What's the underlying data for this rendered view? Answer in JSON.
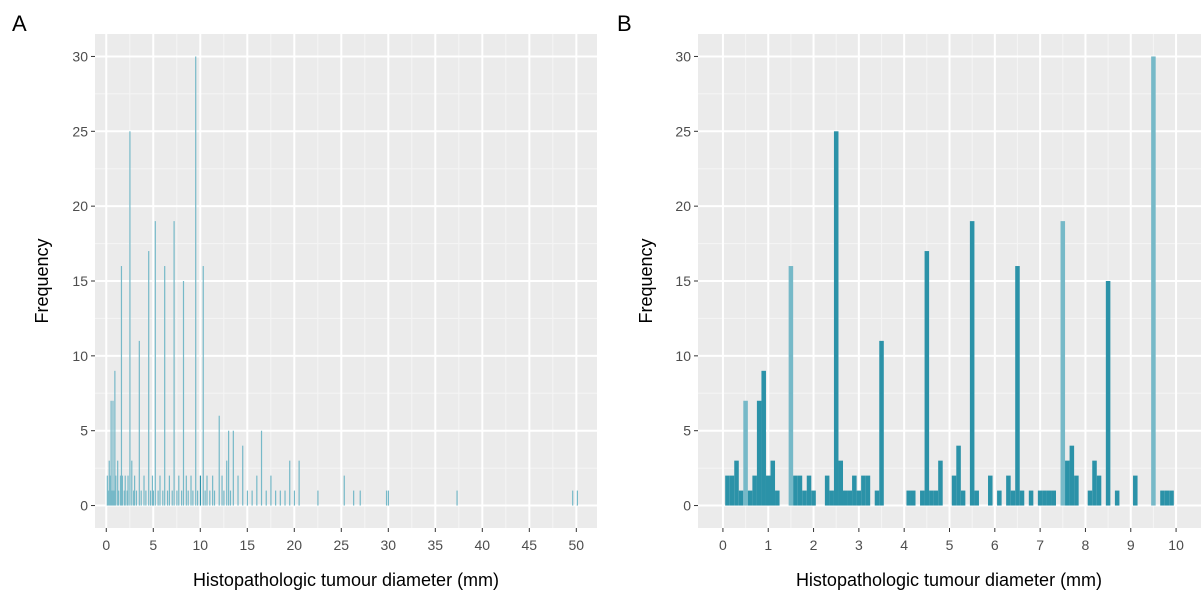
{
  "chart_data": [
    {
      "panel": "A",
      "type": "bar",
      "xlabel": "Histopathologic tumour diameter (mm)",
      "ylabel": "Frequency",
      "xlim": [
        -1.2,
        52.2
      ],
      "ylim": [
        -1.5,
        31.5
      ],
      "xticks": [
        0,
        5,
        10,
        15,
        20,
        25,
        30,
        35,
        40,
        45,
        50
      ],
      "yticks": [
        0,
        5,
        10,
        15,
        20,
        25,
        30
      ],
      "bar_width": 0.1,
      "grid": true,
      "colors": {
        "light": "#76b9c8",
        "dark": "#2b92a8"
      },
      "x": [
        0.1,
        0.2,
        0.3,
        0.4,
        0.5,
        0.6,
        0.7,
        0.8,
        0.9,
        1.0,
        1.2,
        1.3,
        1.5,
        1.6,
        1.7,
        1.9,
        2.0,
        2.2,
        2.3,
        2.5,
        2.7,
        2.9,
        3.0,
        3.2,
        3.5,
        3.7,
        4.0,
        4.2,
        4.5,
        4.7,
        4.9,
        5.0,
        5.2,
        5.5,
        5.7,
        6.0,
        6.2,
        6.5,
        6.7,
        7.0,
        7.2,
        7.5,
        7.7,
        8.0,
        8.2,
        8.5,
        8.7,
        9.0,
        9.2,
        9.5,
        9.7,
        10.0,
        10.3,
        10.5,
        10.7,
        11.0,
        11.3,
        11.5,
        12.0,
        12.3,
        12.5,
        12.8,
        13.0,
        13.2,
        13.5,
        14.0,
        14.5,
        15.0,
        15.5,
        16.0,
        16.5,
        17.0,
        17.5,
        18.0,
        18.5,
        19.0,
        19.5,
        20.0,
        20.5,
        22.5,
        25.3,
        26.3,
        27.0,
        29.8,
        30.0,
        37.3,
        49.6,
        50.1
      ],
      "values": [
        2,
        1,
        3,
        2,
        7,
        1,
        7,
        1,
        9,
        2,
        3,
        1,
        2,
        16,
        2,
        1,
        2,
        1,
        2,
        25,
        3,
        1,
        2,
        1,
        11,
        1,
        2,
        1,
        17,
        1,
        2,
        1,
        19,
        1,
        2,
        1,
        16,
        1,
        2,
        1,
        19,
        1,
        2,
        1,
        15,
        2,
        1,
        2,
        1,
        30,
        1,
        2,
        16,
        1,
        2,
        1,
        2,
        1,
        6,
        2,
        1,
        3,
        5,
        1,
        5,
        2,
        4,
        1,
        1,
        2,
        5,
        1,
        2,
        1,
        1,
        1,
        3,
        1,
        3,
        1,
        2,
        1,
        1,
        1,
        1,
        1,
        1,
        1
      ],
      "shade": [
        "light",
        "light",
        "light",
        "light",
        "light",
        "light",
        "light",
        "light",
        "light",
        "light",
        "light",
        "light",
        "light",
        "light",
        "light",
        "light",
        "light",
        "light",
        "light",
        "light",
        "light",
        "light",
        "light",
        "light",
        "light",
        "light",
        "light",
        "light",
        "light",
        "light",
        "light",
        "light",
        "light",
        "light",
        "light",
        "light",
        "light",
        "light",
        "light",
        "light",
        "light",
        "light",
        "light",
        "light",
        "light",
        "light",
        "light",
        "light",
        "light",
        "light",
        "light",
        "dark",
        "light",
        "light",
        "light",
        "light",
        "light",
        "light",
        "light",
        "light",
        "light",
        "light",
        "light",
        "light",
        "light",
        "light",
        "light",
        "light",
        "light",
        "light",
        "light",
        "light",
        "light",
        "light",
        "light",
        "light",
        "light",
        "light",
        "light",
        "light",
        "light",
        "light",
        "light",
        "light",
        "light",
        "light",
        "light",
        "light"
      ]
    },
    {
      "panel": "B",
      "type": "bar",
      "xlabel": "Histopathologic tumour diameter (mm)",
      "ylabel": "Frequency",
      "xlim": [
        -0.55,
        10.55
      ],
      "ylim": [
        -1.5,
        31.5
      ],
      "xticks": [
        0,
        1,
        2,
        3,
        4,
        5,
        6,
        7,
        8,
        9,
        10
      ],
      "yticks": [
        0,
        5,
        10,
        15,
        20,
        25,
        30
      ],
      "bar_width": 0.1,
      "grid": true,
      "colors": {
        "light": "#76b9c8",
        "dark": "#2b92a8"
      },
      "x": [
        0.1,
        0.2,
        0.3,
        0.4,
        0.5,
        0.6,
        0.7,
        0.8,
        0.9,
        1.0,
        1.1,
        1.2,
        1.5,
        1.6,
        1.7,
        1.8,
        1.9,
        2.0,
        2.3,
        2.4,
        2.5,
        2.6,
        2.7,
        2.8,
        2.9,
        3.0,
        3.1,
        3.2,
        3.4,
        3.5,
        4.1,
        4.2,
        4.4,
        4.5,
        4.6,
        4.7,
        4.8,
        5.1,
        5.2,
        5.3,
        5.5,
        5.6,
        5.9,
        6.1,
        6.3,
        6.4,
        6.5,
        6.6,
        6.8,
        7.0,
        7.1,
        7.2,
        7.3,
        7.5,
        7.6,
        7.7,
        7.8,
        8.1,
        8.2,
        8.3,
        8.5,
        8.7,
        9.1,
        9.5,
        9.7,
        9.8,
        9.9
      ],
      "values": [
        2,
        2,
        3,
        1,
        7,
        1,
        2,
        7,
        9,
        2,
        3,
        1,
        16,
        2,
        2,
        1,
        2,
        1,
        2,
        1,
        25,
        3,
        1,
        1,
        2,
        1,
        2,
        2,
        1,
        11,
        1,
        1,
        1,
        17,
        1,
        1,
        3,
        2,
        4,
        1,
        19,
        1,
        2,
        1,
        2,
        1,
        16,
        1,
        1,
        1,
        1,
        1,
        1,
        19,
        3,
        4,
        2,
        1,
        3,
        2,
        15,
        1,
        2,
        30,
        1,
        1,
        1
      ],
      "shade": [
        "dark",
        "dark",
        "dark",
        "dark",
        "light",
        "dark",
        "dark",
        "dark",
        "dark",
        "dark",
        "dark",
        "dark",
        "light",
        "dark",
        "dark",
        "dark",
        "dark",
        "dark",
        "dark",
        "dark",
        "dark",
        "dark",
        "dark",
        "dark",
        "dark",
        "dark",
        "dark",
        "dark",
        "dark",
        "dark",
        "dark",
        "dark",
        "dark",
        "dark",
        "dark",
        "dark",
        "dark",
        "dark",
        "dark",
        "dark",
        "dark",
        "dark",
        "dark",
        "dark",
        "dark",
        "dark",
        "dark",
        "dark",
        "dark",
        "dark",
        "dark",
        "dark",
        "dark",
        "light",
        "dark",
        "dark",
        "dark",
        "dark",
        "dark",
        "dark",
        "dark",
        "dark",
        "dark",
        "light",
        "dark",
        "dark",
        "dark"
      ]
    }
  ]
}
